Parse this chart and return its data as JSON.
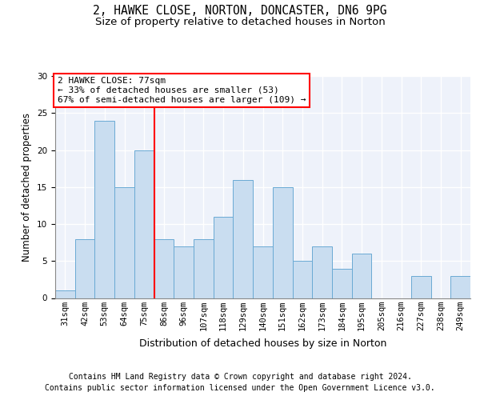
{
  "title1": "2, HAWKE CLOSE, NORTON, DONCASTER, DN6 9PG",
  "title2": "Size of property relative to detached houses in Norton",
  "xlabel": "Distribution of detached houses by size in Norton",
  "ylabel": "Number of detached properties",
  "categories": [
    "31sqm",
    "42sqm",
    "53sqm",
    "64sqm",
    "75sqm",
    "86sqm",
    "96sqm",
    "107sqm",
    "118sqm",
    "129sqm",
    "140sqm",
    "151sqm",
    "162sqm",
    "173sqm",
    "184sqm",
    "195sqm",
    "205sqm",
    "216sqm",
    "227sqm",
    "238sqm",
    "249sqm"
  ],
  "values": [
    1,
    8,
    24,
    15,
    20,
    8,
    7,
    8,
    11,
    16,
    7,
    15,
    5,
    7,
    4,
    6,
    0,
    0,
    3,
    0,
    3
  ],
  "bar_color": "#c9ddf0",
  "bar_edge_color": "#6aaad4",
  "redline_index": 4.5,
  "annotation_text": "2 HAWKE CLOSE: 77sqm\n← 33% of detached houses are smaller (53)\n67% of semi-detached houses are larger (109) →",
  "annotation_box_color": "white",
  "annotation_box_edge": "red",
  "ylim": [
    0,
    30
  ],
  "yticks": [
    0,
    5,
    10,
    15,
    20,
    25,
    30
  ],
  "footer_line1": "Contains HM Land Registry data © Crown copyright and database right 2024.",
  "footer_line2": "Contains public sector information licensed under the Open Government Licence v3.0.",
  "background_color": "#eef2fa",
  "grid_color": "white",
  "title1_fontsize": 10.5,
  "title2_fontsize": 9.5,
  "xlabel_fontsize": 9,
  "ylabel_fontsize": 8.5,
  "tick_fontsize": 7.5,
  "footer_fontsize": 7,
  "annot_fontsize": 8
}
